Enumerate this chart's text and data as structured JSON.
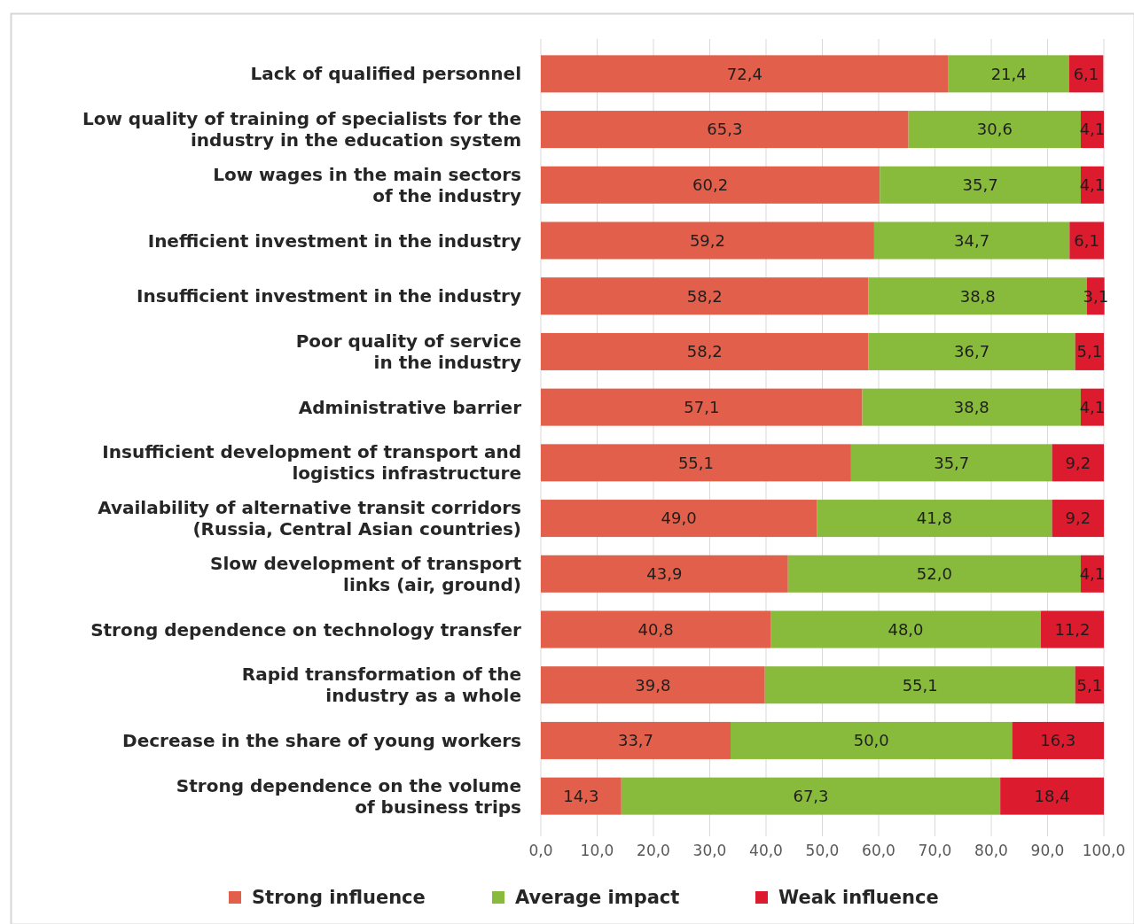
{
  "chart_data": {
    "type": "bar",
    "orientation": "horizontal",
    "stacked": true,
    "categories": [
      "Lack of qualified personnel",
      "Low quality of training of specialists for the\nindustry in the education system",
      "Low wages in the main sectors\nof the industry",
      "Inefficient investment in the industry",
      "Insufficient investment in the industry",
      "Poor quality of service\nin the industry",
      "Administrative barrier",
      "Insufficient development of transport and\nlogistics infrastructure",
      "Availability of alternative transit corridors\n(Russia, Central Asian countries)",
      "Slow development of transport\nlinks (air, ground)",
      "Strong dependence on technology transfer",
      "Rapid transformation of the\nindustry as a whole",
      "Decrease in the share of young workers",
      "Strong dependence on the volume\nof business trips"
    ],
    "series": [
      {
        "name": "Strong influence",
        "color": "#e2604b",
        "values": [
          72.4,
          65.3,
          60.2,
          59.2,
          58.2,
          58.2,
          57.1,
          55.1,
          49.0,
          43.9,
          40.8,
          39.8,
          33.7,
          14.3
        ],
        "value_labels": [
          "72,4",
          "65,3",
          "60,2",
          "59,2",
          "58,2",
          "58,2",
          "57,1",
          "55,1",
          "49,0",
          "43,9",
          "40,8",
          "39,8",
          "33,7",
          "14,3"
        ]
      },
      {
        "name": "Average impact",
        "color": "#88bb3c",
        "values": [
          21.4,
          30.6,
          35.7,
          34.7,
          38.8,
          36.7,
          38.8,
          35.7,
          41.8,
          52.0,
          48.0,
          55.1,
          50.0,
          67.3
        ],
        "value_labels": [
          "21,4",
          "30,6",
          "35,7",
          "34,7",
          "38,8",
          "36,7",
          "38,8",
          "35,7",
          "41,8",
          "52,0",
          "48,0",
          "55,1",
          "50,0",
          "67,3"
        ]
      },
      {
        "name": "Weak influence",
        "color": "#dc1c2e",
        "values": [
          6.1,
          4.1,
          4.1,
          6.1,
          3.1,
          5.1,
          4.1,
          9.2,
          9.2,
          4.1,
          11.2,
          5.1,
          16.3,
          18.4
        ],
        "value_labels": [
          "6,1",
          "4,1",
          "4,1",
          "6,1",
          "3,1",
          "5,1",
          "4,1",
          "9,2",
          "9,2",
          "4,1",
          "11,2",
          "5,1",
          "16,3",
          "18,4"
        ]
      }
    ],
    "xlim": [
      0,
      100
    ],
    "xticks": [
      {
        "value": 0,
        "label": "0,0"
      },
      {
        "value": 10,
        "label": "10,0"
      },
      {
        "value": 20,
        "label": "20,0"
      },
      {
        "value": 30,
        "label": "30,0"
      },
      {
        "value": 40,
        "label": "40,0"
      },
      {
        "value": 50,
        "label": "50,0"
      },
      {
        "value": 60,
        "label": "60,0"
      },
      {
        "value": 70,
        "label": "70,0"
      },
      {
        "value": 80,
        "label": "80,0"
      },
      {
        "value": 90,
        "label": "90,0"
      },
      {
        "value": 100,
        "label": "100,0"
      }
    ],
    "grid": "x",
    "legend": "bottom"
  }
}
